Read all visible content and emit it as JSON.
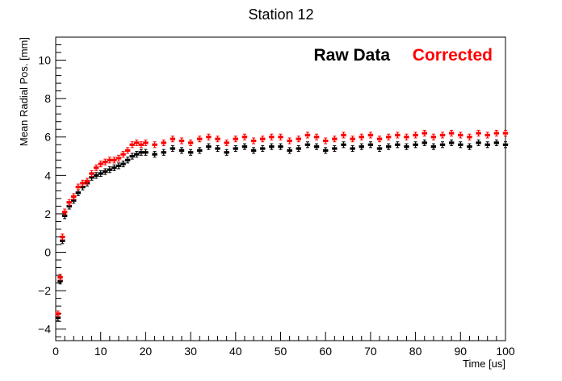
{
  "chart_data": {
    "type": "scatter",
    "title": "Station 12",
    "xlabel": "Time [us]",
    "ylabel": "Mean Radial Pos. [mm]",
    "xlim": [
      0,
      100
    ],
    "ylim": [
      -4.6,
      11.2
    ],
    "xticks": [
      0,
      10,
      20,
      30,
      40,
      50,
      60,
      70,
      80,
      90,
      100
    ],
    "yticks": [
      -4,
      -2,
      0,
      2,
      4,
      6,
      8,
      10
    ],
    "grid": false,
    "legend_position": "top-right",
    "error_bars": true,
    "series": [
      {
        "name": "Raw Data",
        "color": "#000000",
        "x": [
          0.5,
          1,
          1.5,
          2,
          3,
          4,
          5,
          6,
          7,
          8,
          9,
          10,
          11,
          12,
          13,
          14,
          15,
          16,
          17,
          18,
          19,
          20,
          22,
          24,
          26,
          28,
          30,
          32,
          34,
          36,
          38,
          40,
          42,
          44,
          46,
          48,
          50,
          52,
          54,
          56,
          58,
          60,
          62,
          64,
          66,
          68,
          70,
          72,
          74,
          76,
          78,
          80,
          82,
          84,
          86,
          88,
          90,
          92,
          94,
          96,
          98,
          100
        ],
        "y": [
          -3.4,
          -1.5,
          0.6,
          1.9,
          2.4,
          2.7,
          3.1,
          3.4,
          3.6,
          3.9,
          4.0,
          4.1,
          4.2,
          4.3,
          4.4,
          4.5,
          4.6,
          4.8,
          5.0,
          5.1,
          5.2,
          5.2,
          5.1,
          5.2,
          5.4,
          5.3,
          5.2,
          5.3,
          5.5,
          5.4,
          5.2,
          5.4,
          5.5,
          5.3,
          5.4,
          5.5,
          5.5,
          5.3,
          5.4,
          5.6,
          5.5,
          5.3,
          5.4,
          5.6,
          5.4,
          5.5,
          5.6,
          5.4,
          5.5,
          5.6,
          5.5,
          5.6,
          5.7,
          5.5,
          5.6,
          5.7,
          5.6,
          5.5,
          5.7,
          5.6,
          5.7,
          5.6
        ]
      },
      {
        "name": "Corrected",
        "color": "#ff0000",
        "x": [
          0.5,
          1,
          1.5,
          2,
          3,
          4,
          5,
          6,
          7,
          8,
          9,
          10,
          11,
          12,
          13,
          14,
          15,
          16,
          17,
          18,
          19,
          20,
          22,
          24,
          26,
          28,
          30,
          32,
          34,
          36,
          38,
          40,
          42,
          44,
          46,
          48,
          50,
          52,
          54,
          56,
          58,
          60,
          62,
          64,
          66,
          68,
          70,
          72,
          74,
          76,
          78,
          80,
          82,
          84,
          86,
          88,
          90,
          92,
          94,
          96,
          98,
          100
        ],
        "y": [
          -3.2,
          -1.3,
          0.8,
          2.1,
          2.6,
          2.9,
          3.4,
          3.6,
          3.7,
          4.1,
          4.4,
          4.6,
          4.7,
          4.8,
          4.8,
          4.9,
          5.1,
          5.3,
          5.6,
          5.7,
          5.6,
          5.7,
          5.6,
          5.7,
          5.9,
          5.8,
          5.7,
          5.9,
          6.0,
          5.9,
          5.7,
          5.9,
          6.0,
          5.8,
          5.9,
          6.0,
          6.0,
          5.8,
          5.9,
          6.1,
          6.0,
          5.8,
          5.9,
          6.1,
          5.9,
          6.0,
          6.1,
          5.9,
          6.0,
          6.1,
          6.0,
          6.1,
          6.2,
          6.0,
          6.1,
          6.2,
          6.1,
          6.0,
          6.2,
          6.1,
          6.2,
          6.2
        ]
      }
    ]
  }
}
